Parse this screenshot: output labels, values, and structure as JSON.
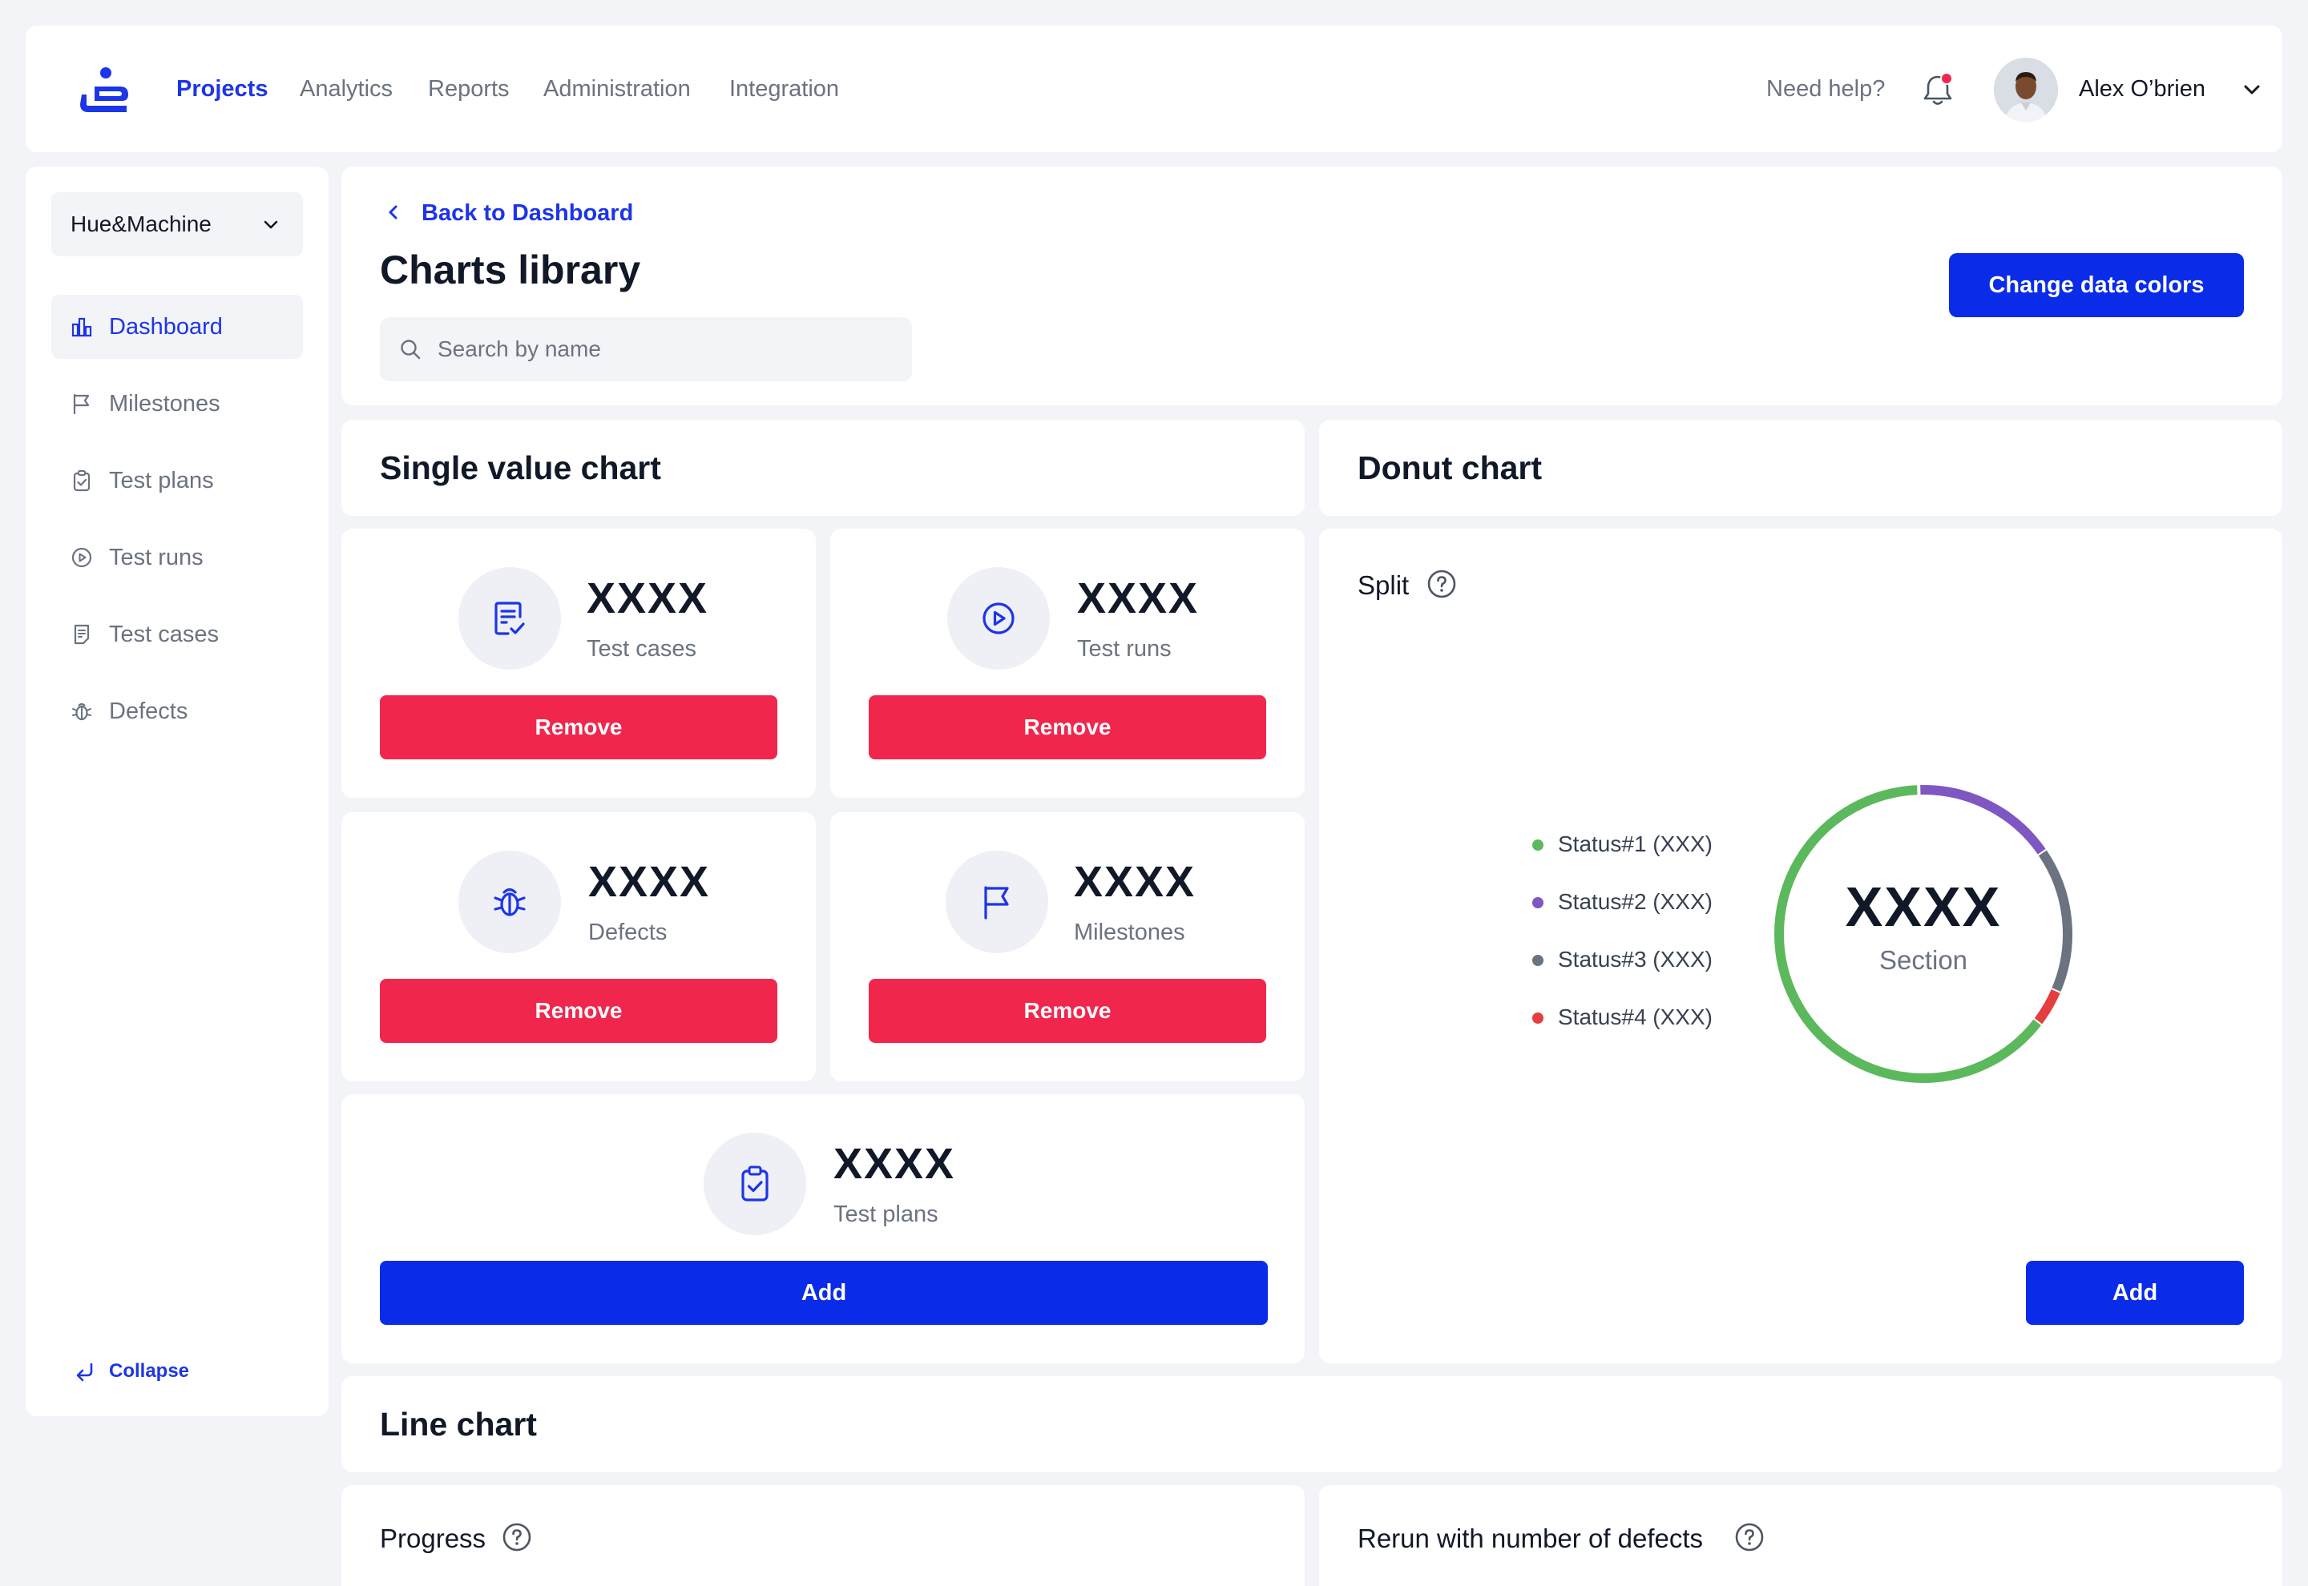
{
  "nav": {
    "items": [
      "Projects",
      "Analytics",
      "Reports",
      "Administration",
      "Integration"
    ],
    "active": "Projects",
    "help": "Need help?",
    "user_name": "Alex O’brien",
    "notification_dot_color": "#f1264d"
  },
  "sidebar": {
    "workspace": "Hue&Machine",
    "items": [
      {
        "label": "Dashboard",
        "icon": "dashboard-icon",
        "active": true
      },
      {
        "label": "Milestones",
        "icon": "flag-icon",
        "active": false
      },
      {
        "label": "Test plans",
        "icon": "clipboard-icon",
        "active": false
      },
      {
        "label": "Test runs",
        "icon": "play-circle-icon",
        "active": false
      },
      {
        "label": "Test cases",
        "icon": "document-icon",
        "active": false
      },
      {
        "label": "Defects",
        "icon": "bug-icon",
        "active": false
      }
    ],
    "collapse": "Collapse"
  },
  "header": {
    "back": "Back to Dashboard",
    "title": "Charts library",
    "search_placeholder": "Search by name",
    "change_colors": "Change data colors"
  },
  "single_value": {
    "title": "Single value chart",
    "tiles": [
      {
        "value": "XXXX",
        "label": "Test cases",
        "icon": "test-cases-icon",
        "action": "Remove"
      },
      {
        "value": "XXXX",
        "label": "Test runs",
        "icon": "play-circle-icon",
        "action": "Remove"
      },
      {
        "value": "XXXX",
        "label": "Defects",
        "icon": "bug-icon",
        "action": "Remove"
      },
      {
        "value": "XXXX",
        "label": "Milestones",
        "icon": "flag-icon",
        "action": "Remove"
      },
      {
        "value": "XXXX",
        "label": "Test plans",
        "icon": "clipboard-check-icon",
        "action": "Add"
      }
    ]
  },
  "donut": {
    "title": "Donut chart",
    "subtitle": "Split",
    "center_value": "XXXX",
    "center_label": "Section",
    "add": "Add",
    "legend": [
      {
        "label": "Status#1 (XXX)",
        "color": "#5cb85c"
      },
      {
        "label": "Status#2 (XXX)",
        "color": "#7e57c2"
      },
      {
        "label": "Status#3 (XXX)",
        "color": "#6b7280"
      },
      {
        "label": "Status#4 (XXX)",
        "color": "#e53e3e"
      }
    ]
  },
  "chart_data": {
    "type": "pie",
    "categories": [
      "Status#1 (XXX)",
      "Status#2 (XXX)",
      "Status#3 (XXX)",
      "Status#4 (XXX)"
    ],
    "values": [
      64,
      16,
      16,
      4
    ],
    "colors": [
      "#5cb85c",
      "#7e57c2",
      "#6b7280",
      "#e53e3e"
    ],
    "title": "Split"
  },
  "line": {
    "title": "Line chart",
    "progress": "Progress",
    "rerun": "Rerun with number of defects"
  },
  "colors": {
    "primary": "#0a2be8",
    "danger": "#f1264d",
    "background": "#f3f4f7"
  }
}
